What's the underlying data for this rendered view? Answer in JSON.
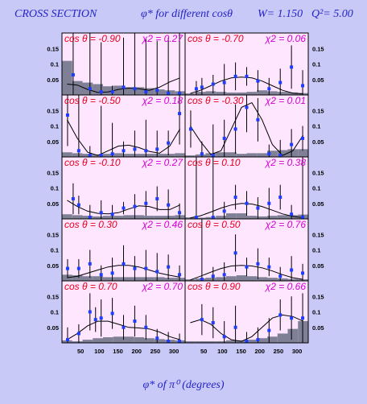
{
  "title": {
    "label": "CROSS SECTION",
    "subtitle": "φ* for different cosθ",
    "w": "W= 1.150",
    "q2": "Q²= 5.00"
  },
  "xlabel": "φ* of π⁰ (degrees)",
  "colors": {
    "panel": "#ffe6ff",
    "text": "#2323c8",
    "points": "#1e3cff",
    "cos_label": "#e8001c",
    "chi_label": "#d200d2",
    "histogram": "#7f7f96"
  },
  "axes": {
    "xticks": [
      "50",
      "100",
      "150",
      "200",
      "250",
      "300"
    ],
    "yticks": [
      "0.15",
      "0.1",
      "0.05"
    ]
  },
  "chart_data": {
    "type": "scatter",
    "xlim": [
      0,
      330
    ],
    "ylim": [
      0,
      0.2
    ],
    "grid": false,
    "panels": [
      {
        "cos_label": "cos θ = -0.90",
        "chi_label": "χ2 = 0.27",
        "points": [
          [
            30,
            0.065,
            0.18
          ],
          [
            75,
            0.02,
            0.18
          ],
          [
            105,
            0.01,
            0.16
          ],
          [
            135,
            0.01,
            0.02
          ],
          [
            165,
            0.025,
            0.16
          ],
          [
            195,
            0.02,
            0.18
          ],
          [
            225,
            0.01,
            0.17
          ],
          [
            255,
            0.015,
            0.16
          ],
          [
            285,
            0.005,
            0.18
          ],
          [
            315,
            0.005,
            0.2
          ]
        ],
        "curve": [
          0.035,
          0.032,
          0.018,
          0.008,
          0.01,
          0.018,
          0.022,
          0.02,
          0.015,
          0.025,
          0.042,
          0.055
        ],
        "hist": [
          0.11,
          0.045,
          0.04,
          0.035,
          0.028,
          0.03,
          0.025,
          0.025,
          0.022,
          0.018,
          0.015,
          0.012
        ]
      },
      {
        "cos_label": "cos θ = -0.70",
        "chi_label": "χ2 = 0.06",
        "points": [
          [
            30,
            0.02,
            0.025
          ],
          [
            45,
            0.025,
            0.03
          ],
          [
            75,
            0.035,
            0.03
          ],
          [
            105,
            0.04,
            0.06
          ],
          [
            135,
            0.06,
            0.045
          ],
          [
            165,
            0.06,
            0.03
          ],
          [
            195,
            0.045,
            0.035
          ],
          [
            225,
            0.02,
            0.035
          ],
          [
            255,
            0.04,
            0.045
          ],
          [
            285,
            0.09,
            0.07
          ],
          [
            315,
            0.03,
            0.05
          ]
        ],
        "curve": [
          0.005,
          0.015,
          0.03,
          0.045,
          0.055,
          0.058,
          0.055,
          0.045,
          0.03,
          0.015,
          0.006,
          0.004
        ],
        "hist": [
          0.005,
          0.01,
          0.012,
          0.01,
          0.008,
          0.008,
          0.01,
          0.015,
          0.012,
          0.01,
          0.008,
          0.006
        ]
      },
      {
        "cos_label": "cos θ = -0.50",
        "chi_label": "χ2 = 0.18",
        "points": [
          [
            15,
            0.135,
            0.1
          ],
          [
            45,
            0.02,
            0.18
          ],
          [
            75,
            0.005,
            0.03
          ],
          [
            105,
            0.005,
            0.16
          ],
          [
            135,
            0.01,
            0.1
          ],
          [
            165,
            0.02,
            0.03
          ],
          [
            195,
            0.025,
            0.06
          ],
          [
            225,
            0.02,
            0.1
          ],
          [
            255,
            0.025,
            0.06
          ],
          [
            285,
            0.045,
            0.04
          ],
          [
            315,
            0.14,
            0.1
          ]
        ],
        "curve": [
          0.12,
          0.06,
          0.015,
          0.005,
          0.02,
          0.035,
          0.038,
          0.03,
          0.018,
          0.012,
          0.035,
          0.09
        ],
        "hist": [
          0.015,
          0.012,
          0.01,
          0.008,
          0.01,
          0.012,
          0.01,
          0.01,
          0.01,
          0.01,
          0.01,
          0.012
        ]
      },
      {
        "cos_label": "cos θ = -0.30",
        "chi_label": "χ2 = 0.01",
        "points": [
          [
            15,
            0.09,
            0.06
          ],
          [
            45,
            0.01,
            0.04
          ],
          [
            75,
            0.005,
            0.1
          ],
          [
            105,
            0.06,
            0.06
          ],
          [
            135,
            0.09,
            0.08
          ],
          [
            165,
            0.16,
            0.08
          ],
          [
            195,
            0.12,
            0.07
          ],
          [
            225,
            0.01,
            0.03
          ],
          [
            255,
            0.005,
            0.05
          ],
          [
            285,
            0.04,
            0.05
          ],
          [
            315,
            0.06,
            0.04
          ]
        ],
        "curve": [
          0.1,
          0.05,
          0.008,
          0.02,
          0.09,
          0.16,
          0.175,
          0.12,
          0.04,
          0.005,
          0.02,
          0.07
        ],
        "hist": [
          0.005,
          0.008,
          0.012,
          0.015,
          0.015,
          0.01,
          0.012,
          0.012,
          0.02,
          0.022,
          0.025,
          0.025
        ]
      },
      {
        "cos_label": "cos θ = -0.10",
        "chi_label": "χ2 = 0.27",
        "points": [
          [
            30,
            0.065,
            0.05
          ],
          [
            45,
            0.045,
            0.03
          ],
          [
            75,
            0.005,
            0.04
          ],
          [
            105,
            0.02,
            0.04
          ],
          [
            135,
            0.015,
            0.03
          ],
          [
            165,
            0.035,
            0.02
          ],
          [
            195,
            0.04,
            0.04
          ],
          [
            225,
            0.05,
            0.04
          ],
          [
            255,
            0.065,
            0.04
          ],
          [
            285,
            0.045,
            0.05
          ],
          [
            315,
            0.02,
            0.03
          ]
        ],
        "curve": [
          0.06,
          0.04,
          0.025,
          0.018,
          0.016,
          0.02,
          0.032,
          0.042,
          0.04,
          0.03,
          0.03,
          0.045
        ],
        "hist": [
          0.015,
          0.012,
          0.01,
          0.008,
          0.01,
          0.01,
          0.012,
          0.012,
          0.01,
          0.01,
          0.01,
          0.012
        ]
      },
      {
        "cos_label": "cos θ = 0.10",
        "chi_label": "χ2 = 0.38",
        "points": [
          [
            30,
            0.005,
            0.2
          ],
          [
            75,
            0.005,
            0.2
          ],
          [
            105,
            0.025,
            0.03
          ],
          [
            135,
            0.07,
            0.04
          ],
          [
            165,
            0.05,
            0.04
          ],
          [
            195,
            0.035,
            0.035
          ],
          [
            225,
            0.05,
            0.05
          ],
          [
            255,
            0.07,
            0.04
          ],
          [
            285,
            0.015,
            0.03
          ],
          [
            315,
            0.005,
            0.2
          ]
        ],
        "curve": [
          0.003,
          0.01,
          0.022,
          0.035,
          0.045,
          0.05,
          0.048,
          0.04,
          0.028,
          0.016,
          0.008,
          0.004
        ],
        "hist": [
          0.005,
          0.004,
          0.006,
          0.01,
          0.018,
          0.018,
          0.01,
          0.008,
          0.01,
          0.012,
          0.012,
          0.014
        ]
      },
      {
        "cos_label": "cos θ = 0.30",
        "chi_label": "χ2 = 0.46",
        "points": [
          [
            15,
            0.04,
            0.03
          ],
          [
            45,
            0.04,
            0.03
          ],
          [
            75,
            0.055,
            0.045
          ],
          [
            105,
            0.02,
            0.03
          ],
          [
            135,
            0.025,
            0.05
          ],
          [
            165,
            0.055,
            0.06
          ],
          [
            195,
            0.04,
            0.04
          ],
          [
            225,
            0.04,
            0.06
          ],
          [
            255,
            0.03,
            0.06
          ],
          [
            285,
            0.045,
            0.04
          ],
          [
            315,
            0.02,
            0.03
          ]
        ],
        "curve": [
          0.01,
          0.015,
          0.025,
          0.035,
          0.045,
          0.05,
          0.05,
          0.045,
          0.035,
          0.025,
          0.018,
          0.012
        ],
        "hist": [
          0.02,
          0.018,
          0.015,
          0.015,
          0.012,
          0.012,
          0.012,
          0.012,
          0.012,
          0.012,
          0.01,
          0.01
        ]
      },
      {
        "cos_label": "cos θ = 0.50",
        "chi_label": "χ2 = 0.76",
        "points": [
          [
            45,
            0.005,
            0.2
          ],
          [
            75,
            0.015,
            0.03
          ],
          [
            105,
            0.02,
            0.04
          ],
          [
            135,
            0.09,
            0.06
          ],
          [
            165,
            0.045,
            0.03
          ],
          [
            195,
            0.055,
            0.05
          ],
          [
            225,
            0.045,
            0.03
          ],
          [
            255,
            0.015,
            0.03
          ],
          [
            285,
            0.035,
            0.045
          ],
          [
            315,
            0.025,
            0.03
          ]
        ],
        "curve": [
          0.003,
          0.015,
          0.028,
          0.04,
          0.048,
          0.05,
          0.048,
          0.042,
          0.032,
          0.02,
          0.01,
          0.005
        ],
        "hist": [
          0.005,
          0.008,
          0.01,
          0.012,
          0.015,
          0.018,
          0.015,
          0.012,
          0.01,
          0.008,
          0.006,
          0.005
        ]
      },
      {
        "cos_label": "cos θ = 0.70",
        "chi_label": "χ2 = 0.70",
        "points": [
          [
            15,
            0.01,
            0.04
          ],
          [
            45,
            0.03,
            0.03
          ],
          [
            75,
            0.1,
            0.06
          ],
          [
            90,
            0.075,
            0.04
          ],
          [
            105,
            0.08,
            0.06
          ],
          [
            135,
            0.095,
            0.05
          ],
          [
            165,
            0.05,
            0.04
          ],
          [
            195,
            0.07,
            0.05
          ],
          [
            225,
            0.05,
            0.04
          ],
          [
            255,
            0.015,
            0.03
          ],
          [
            285,
            0.005,
            0.03
          ],
          [
            315,
            0.005,
            0.025
          ]
        ],
        "curve": [
          0.01,
          0.03,
          0.055,
          0.07,
          0.07,
          0.06,
          0.05,
          0.048,
          0.045,
          0.035,
          0.02,
          0.01
        ],
        "hist": [
          0.008,
          0.005,
          0.01,
          0.015,
          0.018,
          0.02,
          0.02,
          0.018,
          0.015,
          0.012,
          0.01,
          0.008
        ]
      },
      {
        "cos_label": "cos θ = 0.90",
        "chi_label": "χ2 = 0.66",
        "points": [
          [
            45,
            0.075,
            0.05
          ],
          [
            75,
            0.065,
            0.05
          ],
          [
            105,
            0.02,
            0.05
          ],
          [
            135,
            0.05,
            0.07
          ],
          [
            165,
            0.005,
            0.03
          ],
          [
            195,
            0.01,
            0.04
          ],
          [
            225,
            0.04,
            0.04
          ],
          [
            255,
            0.09,
            0.05
          ],
          [
            285,
            0.08,
            0.07
          ],
          [
            315,
            0.08,
            0.08
          ]
        ],
        "curve": [
          0.065,
          0.075,
          0.06,
          0.03,
          0.01,
          0.005,
          0.02,
          0.05,
          0.08,
          0.09,
          0.085,
          0.07
        ],
        "hist": [
          0.005,
          0.005,
          0.005,
          0.005,
          0.008,
          0.008,
          0.01,
          0.015,
          0.02,
          0.03,
          0.045,
          0.07
        ]
      }
    ]
  }
}
